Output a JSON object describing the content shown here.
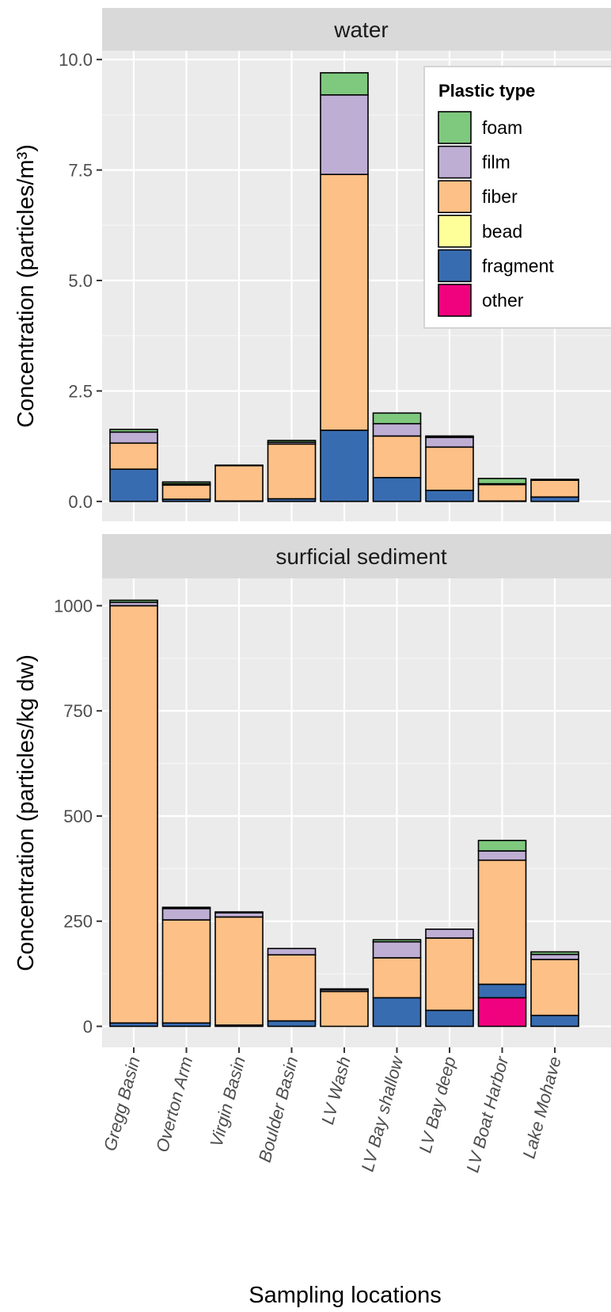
{
  "chart_data": {
    "type": "bar",
    "stacked": true,
    "categories": [
      "Gregg Basin",
      "Overton Arm",
      "Virgin Basin",
      "Boulder Basin",
      "LV Wash",
      "LV Bay shallow",
      "LV Bay deep",
      "LV Boat Harbor",
      "Lake Mohave"
    ],
    "xlabel": "Sampling locations",
    "x_tick_rotation": -75,
    "legend": {
      "title": "Plastic type",
      "position": "top-right",
      "items": [
        {
          "key": "foam",
          "label": "foam",
          "color": "#7fc97f"
        },
        {
          "key": "film",
          "label": "film",
          "color": "#beaed4"
        },
        {
          "key": "fiber",
          "label": "fiber",
          "color": "#fdc086"
        },
        {
          "key": "bead",
          "label": "bead",
          "color": "#ffff99"
        },
        {
          "key": "fragment",
          "label": "fragment",
          "color": "#386cb0"
        },
        {
          "key": "other",
          "label": "other",
          "color": "#f0027f"
        }
      ]
    },
    "stack_order_bottom_to_top": [
      "other",
      "fragment",
      "bead",
      "fiber",
      "film",
      "foam"
    ],
    "panels": [
      {
        "strip": "water",
        "ylabel": "Concentration (particles/m³)",
        "ylim": [
          -0.45,
          10.2
        ],
        "yticks": [
          0,
          2.5,
          5,
          7.5,
          10
        ],
        "ytick_labels": [
          "0.0",
          "2.5",
          "5.0",
          "7.5",
          "10.0"
        ],
        "series": [
          {
            "name": "other",
            "values": [
              0,
              0,
              0,
              0,
              0,
              0,
              0,
              0,
              0
            ]
          },
          {
            "name": "fragment",
            "values": [
              0.73,
              0.05,
              0.01,
              0.06,
              1.61,
              0.54,
              0.25,
              0.01,
              0.1
            ]
          },
          {
            "name": "bead",
            "values": [
              0,
              0,
              0,
              0,
              0,
              0,
              0,
              0,
              0
            ]
          },
          {
            "name": "fiber",
            "values": [
              0.59,
              0.32,
              0.8,
              1.24,
              5.79,
              0.94,
              0.98,
              0.37,
              0.38
            ]
          },
          {
            "name": "film",
            "values": [
              0.25,
              0.03,
              0.01,
              0.04,
              1.8,
              0.28,
              0.22,
              0.02,
              0.02
            ]
          },
          {
            "name": "foam",
            "values": [
              0.06,
              0.04,
              0.0,
              0.04,
              0.5,
              0.24,
              0.03,
              0.12,
              0.0
            ]
          }
        ]
      },
      {
        "strip": "surficial sediment",
        "ylabel": "Concentration (particles/kg dw)",
        "ylim": [
          -50,
          1065
        ],
        "yticks": [
          0,
          250,
          500,
          750,
          1000
        ],
        "ytick_labels": [
          "0",
          "250",
          "500",
          "750",
          "1000"
        ],
        "series": [
          {
            "name": "other",
            "values": [
              0,
              0,
              0,
              0,
              0,
              0,
              0,
              68,
              0
            ]
          },
          {
            "name": "fragment",
            "values": [
              8,
              8,
              3,
              13,
              0,
              68,
              38,
              32,
              26
            ]
          },
          {
            "name": "bead",
            "values": [
              0,
              0,
              0,
              0,
              0,
              0,
              0,
              0,
              0
            ]
          },
          {
            "name": "fiber",
            "values": [
              992,
              245,
              257,
              157,
              83,
              95,
              172,
              295,
              133
            ]
          },
          {
            "name": "film",
            "values": [
              8,
              27,
              10,
              15,
              4,
              38,
              21,
              22,
              12
            ]
          },
          {
            "name": "foam",
            "values": [
              5,
              3,
              2,
              0,
              2,
              5,
              0,
              25,
              6
            ]
          }
        ]
      }
    ]
  }
}
